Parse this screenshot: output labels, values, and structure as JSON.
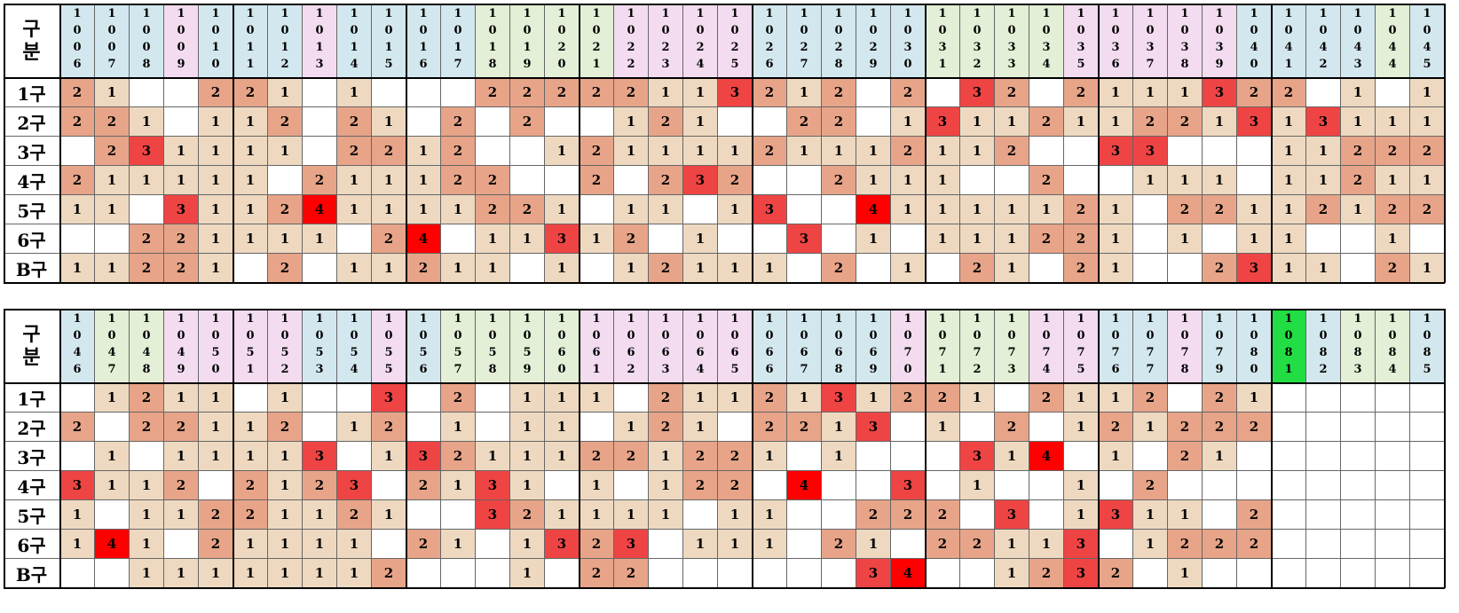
{
  "gubun_label": [
    "구",
    "분"
  ],
  "row_labels": [
    "1구",
    "2구",
    "3구",
    "4구",
    "5구",
    "6구",
    "B구"
  ],
  "colors": {
    "blue": "#d3e8ee",
    "pink": "#f3dcef",
    "green": "#e3efd6",
    "bright_green": "#22dd44",
    "v1": "#eed9c0",
    "v2": "#e8a488",
    "v3": "#ee4444",
    "v4": "#ff0000"
  },
  "tables": [
    {
      "columns": [
        {
          "label": "1006",
          "color": "blue"
        },
        {
          "label": "1007",
          "color": "blue"
        },
        {
          "label": "1008",
          "color": "blue"
        },
        {
          "label": "1009",
          "color": "pink"
        },
        {
          "label": "1010",
          "color": "blue"
        },
        {
          "label": "1011",
          "color": "blue"
        },
        {
          "label": "1012",
          "color": "blue"
        },
        {
          "label": "1013",
          "color": "pink"
        },
        {
          "label": "1014",
          "color": "blue"
        },
        {
          "label": "1015",
          "color": "blue"
        },
        {
          "label": "1016",
          "color": "blue"
        },
        {
          "label": "1017",
          "color": "blue"
        },
        {
          "label": "1018",
          "color": "green"
        },
        {
          "label": "1019",
          "color": "green"
        },
        {
          "label": "1020",
          "color": "green"
        },
        {
          "label": "1021",
          "color": "green"
        },
        {
          "label": "1022",
          "color": "pink"
        },
        {
          "label": "1023",
          "color": "pink"
        },
        {
          "label": "1024",
          "color": "pink"
        },
        {
          "label": "1025",
          "color": "pink"
        },
        {
          "label": "1026",
          "color": "blue"
        },
        {
          "label": "1027",
          "color": "blue"
        },
        {
          "label": "1028",
          "color": "blue"
        },
        {
          "label": "1029",
          "color": "blue"
        },
        {
          "label": "1030",
          "color": "blue"
        },
        {
          "label": "1031",
          "color": "green"
        },
        {
          "label": "1032",
          "color": "green"
        },
        {
          "label": "1033",
          "color": "green"
        },
        {
          "label": "1034",
          "color": "green"
        },
        {
          "label": "1035",
          "color": "pink"
        },
        {
          "label": "1036",
          "color": "pink"
        },
        {
          "label": "1037",
          "color": "pink"
        },
        {
          "label": "1038",
          "color": "pink"
        },
        {
          "label": "1039",
          "color": "pink"
        },
        {
          "label": "1040",
          "color": "blue"
        },
        {
          "label": "1041",
          "color": "blue"
        },
        {
          "label": "1042",
          "color": "blue"
        },
        {
          "label": "1043",
          "color": "blue"
        },
        {
          "label": "1044",
          "color": "green"
        },
        {
          "label": "1045",
          "color": "blue"
        }
      ],
      "rows": [
        [
          2,
          1,
          0,
          0,
          2,
          2,
          1,
          0,
          1,
          0,
          0,
          0,
          2,
          2,
          2,
          2,
          2,
          1,
          1,
          3,
          2,
          1,
          2,
          0,
          2,
          0,
          3,
          2,
          0,
          2,
          1,
          1,
          1,
          3,
          2,
          2,
          0,
          1,
          0,
          1
        ],
        [
          2,
          2,
          1,
          0,
          1,
          1,
          2,
          0,
          2,
          1,
          0,
          2,
          0,
          2,
          0,
          0,
          1,
          2,
          1,
          0,
          0,
          2,
          2,
          0,
          1,
          3,
          1,
          1,
          2,
          1,
          1,
          2,
          2,
          1,
          3,
          1,
          3,
          1,
          1,
          1
        ],
        [
          0,
          2,
          3,
          1,
          1,
          1,
          1,
          0,
          2,
          2,
          1,
          2,
          0,
          0,
          1,
          2,
          1,
          1,
          1,
          1,
          2,
          1,
          1,
          1,
          2,
          1,
          1,
          2,
          0,
          0,
          3,
          3,
          0,
          0,
          0,
          1,
          1,
          2,
          2,
          2
        ],
        [
          2,
          1,
          1,
          1,
          1,
          1,
          0,
          2,
          1,
          1,
          1,
          2,
          2,
          0,
          0,
          2,
          0,
          2,
          3,
          2,
          0,
          0,
          2,
          1,
          1,
          1,
          0,
          0,
          2,
          0,
          0,
          1,
          1,
          1,
          0,
          1,
          1,
          2,
          1,
          1
        ],
        [
          1,
          1,
          0,
          3,
          1,
          1,
          2,
          4,
          1,
          1,
          1,
          1,
          2,
          2,
          1,
          0,
          1,
          1,
          0,
          1,
          3,
          0,
          0,
          4,
          1,
          1,
          1,
          1,
          1,
          2,
          1,
          0,
          2,
          2,
          1,
          1,
          2,
          1,
          2,
          2
        ],
        [
          0,
          0,
          2,
          2,
          1,
          1,
          1,
          1,
          0,
          2,
          4,
          0,
          1,
          1,
          3,
          1,
          2,
          0,
          1,
          0,
          0,
          3,
          0,
          1,
          0,
          1,
          1,
          1,
          2,
          2,
          1,
          0,
          1,
          0,
          1,
          1,
          0,
          0,
          1,
          0
        ],
        [
          1,
          1,
          2,
          2,
          1,
          0,
          2,
          0,
          1,
          1,
          2,
          1,
          1,
          0,
          1,
          0,
          1,
          2,
          1,
          1,
          1,
          0,
          2,
          0,
          1,
          0,
          2,
          1,
          0,
          2,
          1,
          0,
          0,
          2,
          3,
          1,
          1,
          0,
          2,
          1
        ]
      ]
    },
    {
      "columns": [
        {
          "label": "1046",
          "color": "blue"
        },
        {
          "label": "1047",
          "color": "green"
        },
        {
          "label": "1048",
          "color": "green"
        },
        {
          "label": "1049",
          "color": "pink"
        },
        {
          "label": "1050",
          "color": "pink"
        },
        {
          "label": "1051",
          "color": "pink"
        },
        {
          "label": "1052",
          "color": "pink"
        },
        {
          "label": "1053",
          "color": "blue"
        },
        {
          "label": "1054",
          "color": "blue"
        },
        {
          "label": "1055",
          "color": "pink"
        },
        {
          "label": "1056",
          "color": "blue"
        },
        {
          "label": "1057",
          "color": "green"
        },
        {
          "label": "1058",
          "color": "green"
        },
        {
          "label": "1059",
          "color": "green"
        },
        {
          "label": "1060",
          "color": "green"
        },
        {
          "label": "1061",
          "color": "pink"
        },
        {
          "label": "1062",
          "color": "pink"
        },
        {
          "label": "1063",
          "color": "pink"
        },
        {
          "label": "1064",
          "color": "pink"
        },
        {
          "label": "1065",
          "color": "pink"
        },
        {
          "label": "1066",
          "color": "blue"
        },
        {
          "label": "1067",
          "color": "blue"
        },
        {
          "label": "1068",
          "color": "blue"
        },
        {
          "label": "1069",
          "color": "blue"
        },
        {
          "label": "1070",
          "color": "pink"
        },
        {
          "label": "1071",
          "color": "green"
        },
        {
          "label": "1072",
          "color": "green"
        },
        {
          "label": "1073",
          "color": "green"
        },
        {
          "label": "1074",
          "color": "pink"
        },
        {
          "label": "1075",
          "color": "pink"
        },
        {
          "label": "1076",
          "color": "blue"
        },
        {
          "label": "1077",
          "color": "blue"
        },
        {
          "label": "1078",
          "color": "pink"
        },
        {
          "label": "1079",
          "color": "blue"
        },
        {
          "label": "1080",
          "color": "blue"
        },
        {
          "label": "1081",
          "color": "bright_green"
        },
        {
          "label": "1082",
          "color": "blue"
        },
        {
          "label": "1083",
          "color": "green"
        },
        {
          "label": "1084",
          "color": "green"
        },
        {
          "label": "1085",
          "color": "blue"
        }
      ],
      "rows": [
        [
          0,
          1,
          2,
          1,
          1,
          0,
          1,
          0,
          0,
          3,
          0,
          2,
          0,
          1,
          1,
          1,
          0,
          2,
          1,
          1,
          2,
          1,
          3,
          1,
          2,
          2,
          1,
          0,
          2,
          1,
          1,
          2,
          0,
          2,
          1,
          0,
          0,
          0,
          0,
          0
        ],
        [
          2,
          0,
          2,
          2,
          1,
          1,
          2,
          0,
          1,
          2,
          0,
          1,
          0,
          1,
          1,
          0,
          1,
          2,
          1,
          0,
          2,
          2,
          1,
          3,
          0,
          1,
          0,
          2,
          0,
          1,
          2,
          1,
          2,
          2,
          2,
          0,
          0,
          0,
          0,
          0
        ],
        [
          0,
          1,
          0,
          1,
          1,
          1,
          1,
          3,
          0,
          1,
          3,
          2,
          1,
          1,
          1,
          2,
          2,
          1,
          2,
          2,
          1,
          0,
          1,
          0,
          0,
          0,
          3,
          1,
          4,
          0,
          1,
          0,
          2,
          1,
          0,
          0,
          0,
          0,
          0,
          0
        ],
        [
          3,
          1,
          1,
          2,
          0,
          2,
          1,
          2,
          3,
          0,
          2,
          1,
          3,
          1,
          0,
          1,
          0,
          1,
          2,
          2,
          0,
          4,
          0,
          0,
          3,
          0,
          1,
          0,
          0,
          1,
          0,
          2,
          0,
          0,
          0,
          0,
          0,
          0,
          0,
          0
        ],
        [
          1,
          0,
          1,
          1,
          2,
          2,
          1,
          1,
          2,
          1,
          0,
          0,
          3,
          2,
          1,
          1,
          1,
          1,
          0,
          1,
          1,
          0,
          0,
          2,
          2,
          2,
          0,
          3,
          0,
          1,
          3,
          1,
          1,
          0,
          2,
          0,
          0,
          0,
          0,
          0
        ],
        [
          1,
          4,
          1,
          0,
          2,
          1,
          1,
          1,
          1,
          0,
          2,
          1,
          0,
          1,
          3,
          2,
          3,
          0,
          1,
          1,
          1,
          0,
          2,
          1,
          0,
          2,
          2,
          1,
          1,
          3,
          0,
          1,
          2,
          2,
          2,
          0,
          0,
          0,
          0,
          0
        ],
        [
          0,
          0,
          1,
          1,
          1,
          1,
          1,
          1,
          1,
          2,
          0,
          0,
          0,
          1,
          0,
          2,
          2,
          0,
          0,
          0,
          0,
          0,
          0,
          3,
          4,
          0,
          0,
          1,
          2,
          3,
          2,
          0,
          1,
          0,
          0,
          0,
          0,
          0,
          0,
          0
        ]
      ]
    }
  ]
}
